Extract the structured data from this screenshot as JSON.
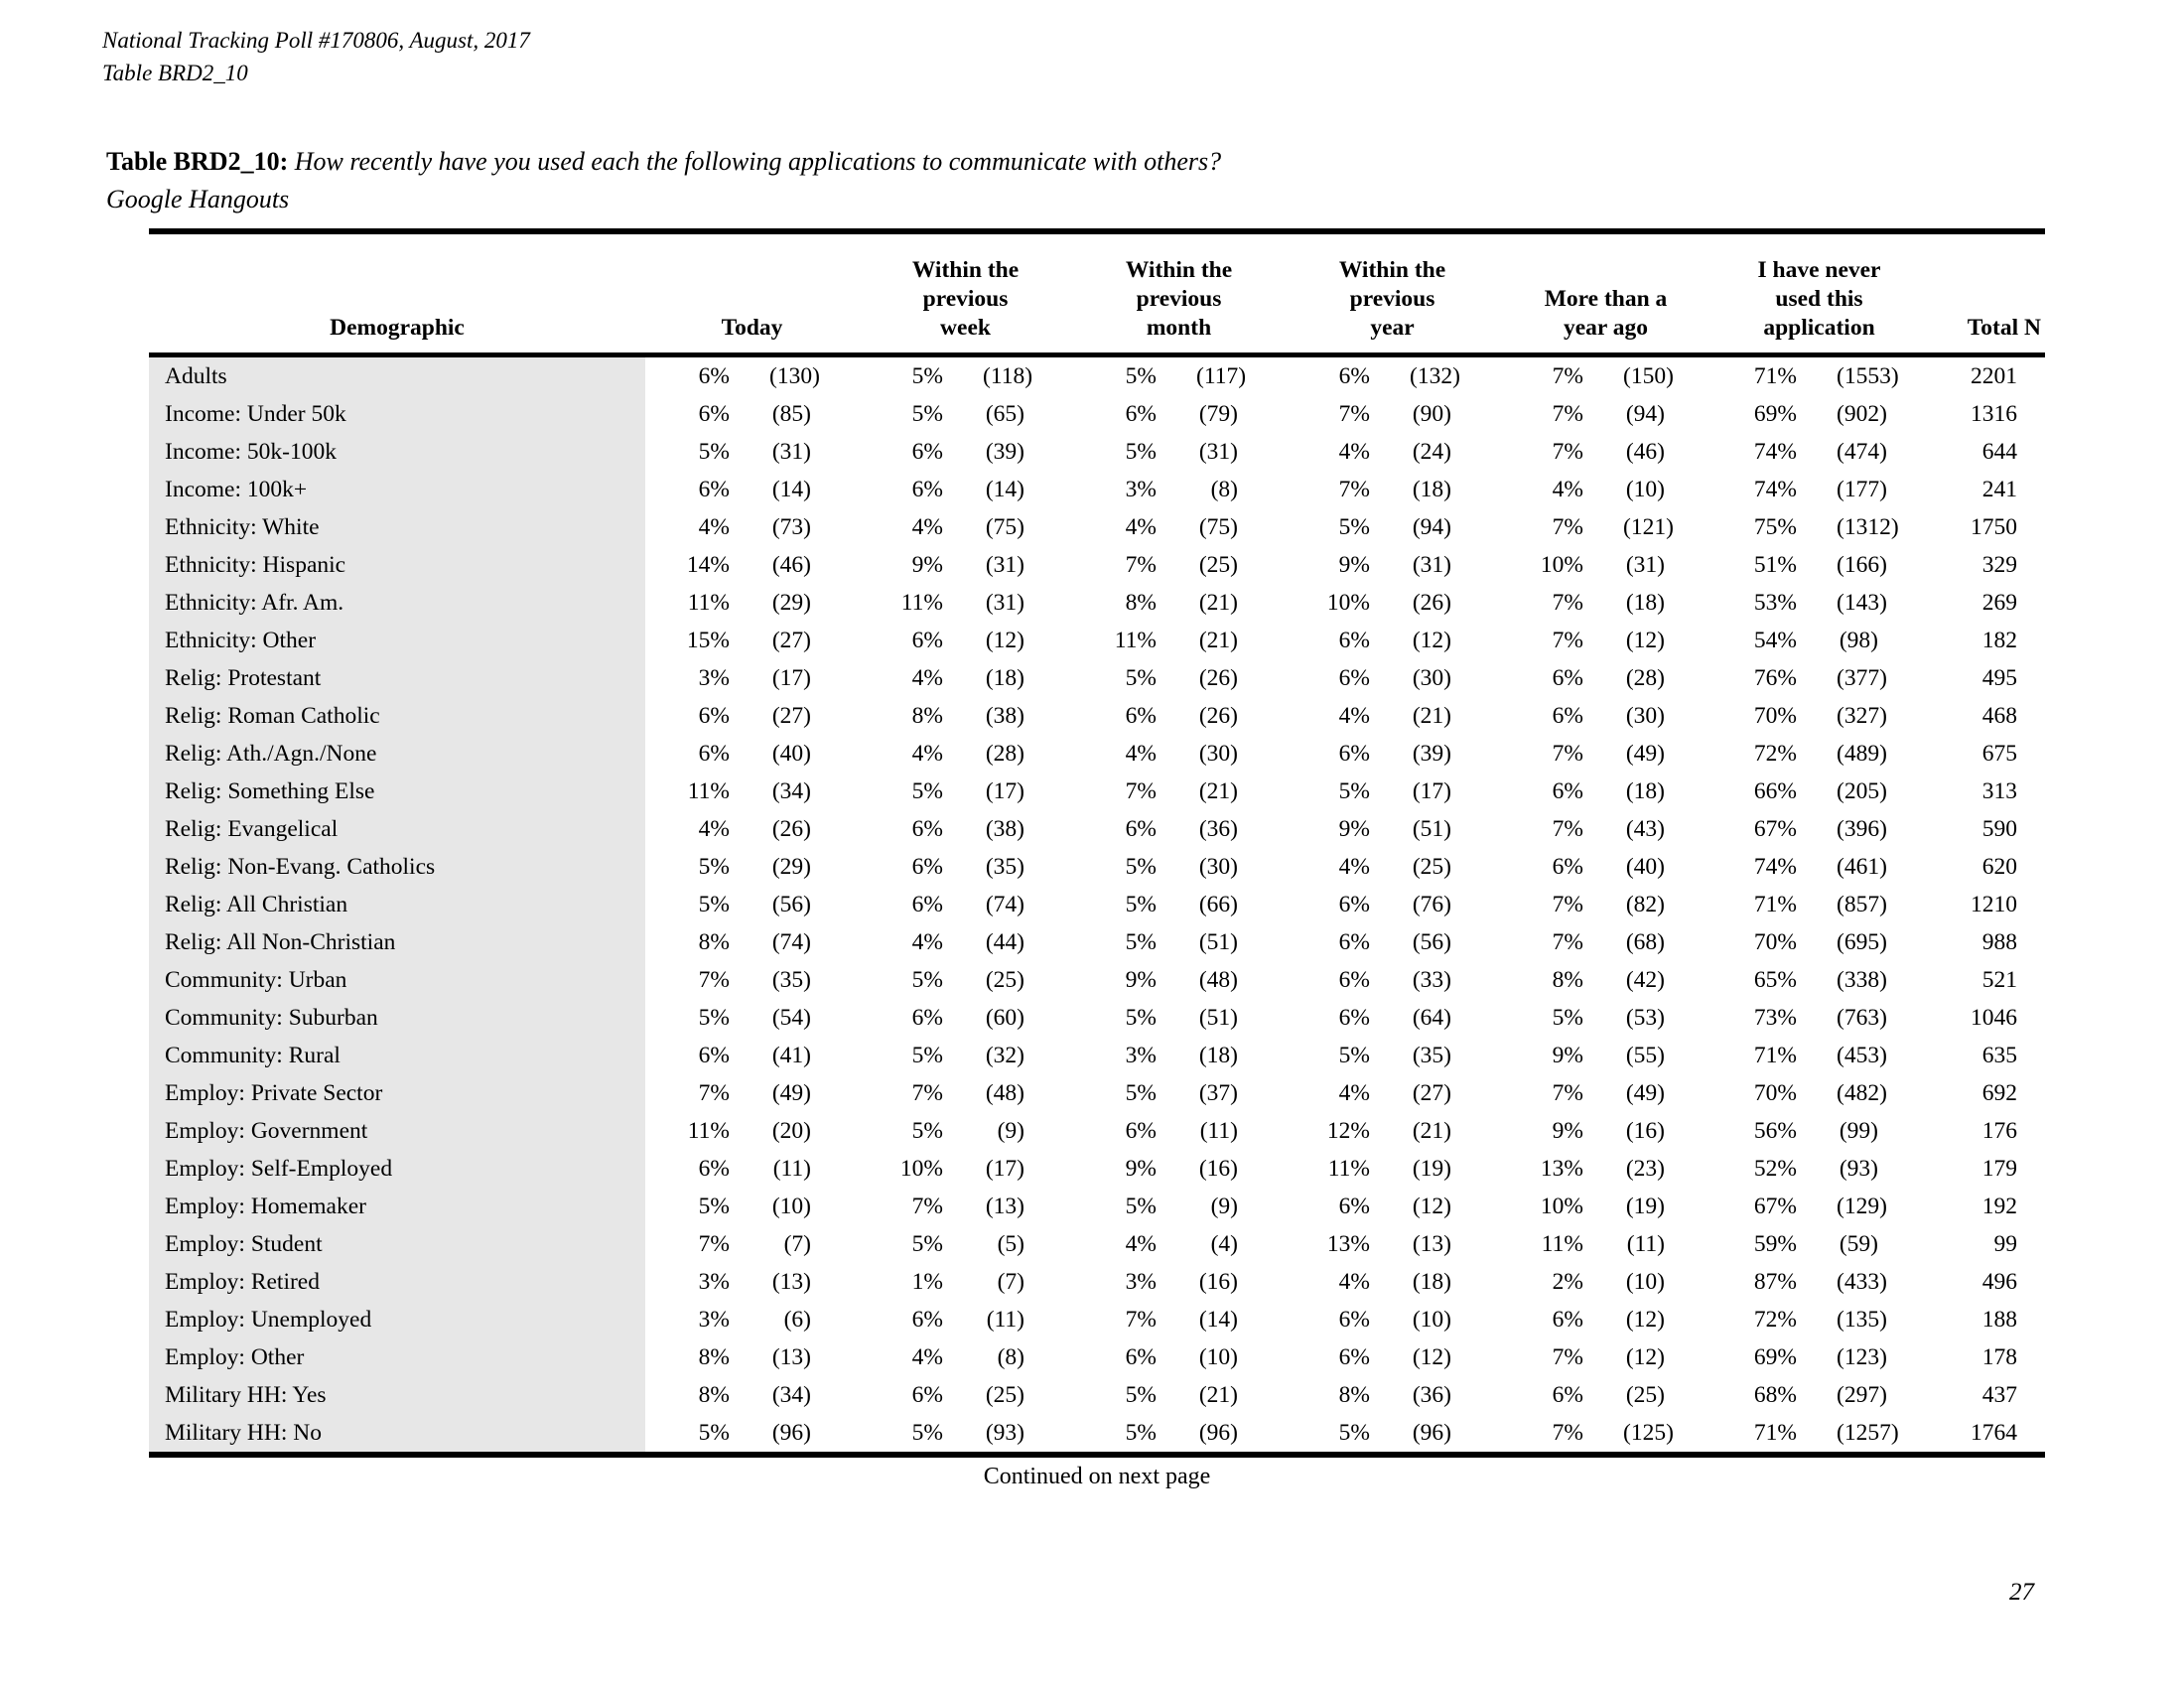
{
  "page": {
    "header_line1": "National Tracking Poll #170806, August, 2017",
    "header_line2": "Table BRD2_10",
    "title_label": "Table BRD2_10:",
    "title_question": "How recently have you used each the following applications to communicate with others?",
    "title_subject": "Google Hangouts",
    "footer_note": "Continued on next page",
    "page_number": "27"
  },
  "colors": {
    "row_shade": "#e7e7e7",
    "text": "#000000",
    "rule": "#000000"
  },
  "table": {
    "demographic_header": "Demographic",
    "group_headers": [
      "Today",
      "Within the previous week",
      "Within the previous month",
      "Within the previous year",
      "More than a year ago",
      "I have never used this application"
    ],
    "total_header": "Total N",
    "rows": [
      {
        "label": "Adults",
        "values": [
          [
            "6%",
            "(130)"
          ],
          [
            "5%",
            "(118)"
          ],
          [
            "5%",
            "(117)"
          ],
          [
            "6%",
            "(132)"
          ],
          [
            "7%",
            "(150)"
          ],
          [
            "71%",
            "(1553)"
          ]
        ],
        "total": "2201"
      },
      {
        "label": "Income: Under 50k",
        "values": [
          [
            "6%",
            "(85)"
          ],
          [
            "5%",
            "(65)"
          ],
          [
            "6%",
            "(79)"
          ],
          [
            "7%",
            "(90)"
          ],
          [
            "7%",
            "(94)"
          ],
          [
            "69%",
            "(902)"
          ]
        ],
        "total": "1316"
      },
      {
        "label": "Income: 50k-100k",
        "values": [
          [
            "5%",
            "(31)"
          ],
          [
            "6%",
            "(39)"
          ],
          [
            "5%",
            "(31)"
          ],
          [
            "4%",
            "(24)"
          ],
          [
            "7%",
            "(46)"
          ],
          [
            "74%",
            "(474)"
          ]
        ],
        "total": "644"
      },
      {
        "label": "Income: 100k+",
        "values": [
          [
            "6%",
            "(14)"
          ],
          [
            "6%",
            "(14)"
          ],
          [
            "3%",
            "(8)"
          ],
          [
            "7%",
            "(18)"
          ],
          [
            "4%",
            "(10)"
          ],
          [
            "74%",
            "(177)"
          ]
        ],
        "total": "241"
      },
      {
        "label": "Ethnicity: White",
        "values": [
          [
            "4%",
            "(73)"
          ],
          [
            "4%",
            "(75)"
          ],
          [
            "4%",
            "(75)"
          ],
          [
            "5%",
            "(94)"
          ],
          [
            "7%",
            "(121)"
          ],
          [
            "75%",
            "(1312)"
          ]
        ],
        "total": "1750"
      },
      {
        "label": "Ethnicity: Hispanic",
        "values": [
          [
            "14%",
            "(46)"
          ],
          [
            "9%",
            "(31)"
          ],
          [
            "7%",
            "(25)"
          ],
          [
            "9%",
            "(31)"
          ],
          [
            "10%",
            "(31)"
          ],
          [
            "51%",
            "(166)"
          ]
        ],
        "total": "329"
      },
      {
        "label": "Ethnicity: Afr. Am.",
        "values": [
          [
            "11%",
            "(29)"
          ],
          [
            "11%",
            "(31)"
          ],
          [
            "8%",
            "(21)"
          ],
          [
            "10%",
            "(26)"
          ],
          [
            "7%",
            "(18)"
          ],
          [
            "53%",
            "(143)"
          ]
        ],
        "total": "269"
      },
      {
        "label": "Ethnicity: Other",
        "values": [
          [
            "15%",
            "(27)"
          ],
          [
            "6%",
            "(12)"
          ],
          [
            "11%",
            "(21)"
          ],
          [
            "6%",
            "(12)"
          ],
          [
            "7%",
            "(12)"
          ],
          [
            "54%",
            "(98)"
          ]
        ],
        "total": "182"
      },
      {
        "label": "Relig: Protestant",
        "values": [
          [
            "3%",
            "(17)"
          ],
          [
            "4%",
            "(18)"
          ],
          [
            "5%",
            "(26)"
          ],
          [
            "6%",
            "(30)"
          ],
          [
            "6%",
            "(28)"
          ],
          [
            "76%",
            "(377)"
          ]
        ],
        "total": "495"
      },
      {
        "label": "Relig: Roman Catholic",
        "values": [
          [
            "6%",
            "(27)"
          ],
          [
            "8%",
            "(38)"
          ],
          [
            "6%",
            "(26)"
          ],
          [
            "4%",
            "(21)"
          ],
          [
            "6%",
            "(30)"
          ],
          [
            "70%",
            "(327)"
          ]
        ],
        "total": "468"
      },
      {
        "label": "Relig: Ath./Agn./None",
        "values": [
          [
            "6%",
            "(40)"
          ],
          [
            "4%",
            "(28)"
          ],
          [
            "4%",
            "(30)"
          ],
          [
            "6%",
            "(39)"
          ],
          [
            "7%",
            "(49)"
          ],
          [
            "72%",
            "(489)"
          ]
        ],
        "total": "675"
      },
      {
        "label": "Relig: Something Else",
        "values": [
          [
            "11%",
            "(34)"
          ],
          [
            "5%",
            "(17)"
          ],
          [
            "7%",
            "(21)"
          ],
          [
            "5%",
            "(17)"
          ],
          [
            "6%",
            "(18)"
          ],
          [
            "66%",
            "(205)"
          ]
        ],
        "total": "313"
      },
      {
        "label": "Relig: Evangelical",
        "values": [
          [
            "4%",
            "(26)"
          ],
          [
            "6%",
            "(38)"
          ],
          [
            "6%",
            "(36)"
          ],
          [
            "9%",
            "(51)"
          ],
          [
            "7%",
            "(43)"
          ],
          [
            "67%",
            "(396)"
          ]
        ],
        "total": "590"
      },
      {
        "label": "Relig: Non-Evang. Catholics",
        "values": [
          [
            "5%",
            "(29)"
          ],
          [
            "6%",
            "(35)"
          ],
          [
            "5%",
            "(30)"
          ],
          [
            "4%",
            "(25)"
          ],
          [
            "6%",
            "(40)"
          ],
          [
            "74%",
            "(461)"
          ]
        ],
        "total": "620"
      },
      {
        "label": "Relig: All Christian",
        "values": [
          [
            "5%",
            "(56)"
          ],
          [
            "6%",
            "(74)"
          ],
          [
            "5%",
            "(66)"
          ],
          [
            "6%",
            "(76)"
          ],
          [
            "7%",
            "(82)"
          ],
          [
            "71%",
            "(857)"
          ]
        ],
        "total": "1210"
      },
      {
        "label": "Relig: All Non-Christian",
        "values": [
          [
            "8%",
            "(74)"
          ],
          [
            "4%",
            "(44)"
          ],
          [
            "5%",
            "(51)"
          ],
          [
            "6%",
            "(56)"
          ],
          [
            "7%",
            "(68)"
          ],
          [
            "70%",
            "(695)"
          ]
        ],
        "total": "988"
      },
      {
        "label": "Community: Urban",
        "values": [
          [
            "7%",
            "(35)"
          ],
          [
            "5%",
            "(25)"
          ],
          [
            "9%",
            "(48)"
          ],
          [
            "6%",
            "(33)"
          ],
          [
            "8%",
            "(42)"
          ],
          [
            "65%",
            "(338)"
          ]
        ],
        "total": "521"
      },
      {
        "label": "Community: Suburban",
        "values": [
          [
            "5%",
            "(54)"
          ],
          [
            "6%",
            "(60)"
          ],
          [
            "5%",
            "(51)"
          ],
          [
            "6%",
            "(64)"
          ],
          [
            "5%",
            "(53)"
          ],
          [
            "73%",
            "(763)"
          ]
        ],
        "total": "1046"
      },
      {
        "label": "Community: Rural",
        "values": [
          [
            "6%",
            "(41)"
          ],
          [
            "5%",
            "(32)"
          ],
          [
            "3%",
            "(18)"
          ],
          [
            "5%",
            "(35)"
          ],
          [
            "9%",
            "(55)"
          ],
          [
            "71%",
            "(453)"
          ]
        ],
        "total": "635"
      },
      {
        "label": "Employ: Private Sector",
        "values": [
          [
            "7%",
            "(49)"
          ],
          [
            "7%",
            "(48)"
          ],
          [
            "5%",
            "(37)"
          ],
          [
            "4%",
            "(27)"
          ],
          [
            "7%",
            "(49)"
          ],
          [
            "70%",
            "(482)"
          ]
        ],
        "total": "692"
      },
      {
        "label": "Employ: Government",
        "values": [
          [
            "11%",
            "(20)"
          ],
          [
            "5%",
            "(9)"
          ],
          [
            "6%",
            "(11)"
          ],
          [
            "12%",
            "(21)"
          ],
          [
            "9%",
            "(16)"
          ],
          [
            "56%",
            "(99)"
          ]
        ],
        "total": "176"
      },
      {
        "label": "Employ: Self-Employed",
        "values": [
          [
            "6%",
            "(11)"
          ],
          [
            "10%",
            "(17)"
          ],
          [
            "9%",
            "(16)"
          ],
          [
            "11%",
            "(19)"
          ],
          [
            "13%",
            "(23)"
          ],
          [
            "52%",
            "(93)"
          ]
        ],
        "total": "179"
      },
      {
        "label": "Employ: Homemaker",
        "values": [
          [
            "5%",
            "(10)"
          ],
          [
            "7%",
            "(13)"
          ],
          [
            "5%",
            "(9)"
          ],
          [
            "6%",
            "(12)"
          ],
          [
            "10%",
            "(19)"
          ],
          [
            "67%",
            "(129)"
          ]
        ],
        "total": "192"
      },
      {
        "label": "Employ: Student",
        "values": [
          [
            "7%",
            "(7)"
          ],
          [
            "5%",
            "(5)"
          ],
          [
            "4%",
            "(4)"
          ],
          [
            "13%",
            "(13)"
          ],
          [
            "11%",
            "(11)"
          ],
          [
            "59%",
            "(59)"
          ]
        ],
        "total": "99"
      },
      {
        "label": "Employ: Retired",
        "values": [
          [
            "3%",
            "(13)"
          ],
          [
            "1%",
            "(7)"
          ],
          [
            "3%",
            "(16)"
          ],
          [
            "4%",
            "(18)"
          ],
          [
            "2%",
            "(10)"
          ],
          [
            "87%",
            "(433)"
          ]
        ],
        "total": "496"
      },
      {
        "label": "Employ: Unemployed",
        "values": [
          [
            "3%",
            "(6)"
          ],
          [
            "6%",
            "(11)"
          ],
          [
            "7%",
            "(14)"
          ],
          [
            "6%",
            "(10)"
          ],
          [
            "6%",
            "(12)"
          ],
          [
            "72%",
            "(135)"
          ]
        ],
        "total": "188"
      },
      {
        "label": "Employ: Other",
        "values": [
          [
            "8%",
            "(13)"
          ],
          [
            "4%",
            "(8)"
          ],
          [
            "6%",
            "(10)"
          ],
          [
            "6%",
            "(12)"
          ],
          [
            "7%",
            "(12)"
          ],
          [
            "69%",
            "(123)"
          ]
        ],
        "total": "178"
      },
      {
        "label": "Military HH: Yes",
        "values": [
          [
            "8%",
            "(34)"
          ],
          [
            "6%",
            "(25)"
          ],
          [
            "5%",
            "(21)"
          ],
          [
            "8%",
            "(36)"
          ],
          [
            "6%",
            "(25)"
          ],
          [
            "68%",
            "(297)"
          ]
        ],
        "total": "437"
      },
      {
        "label": "Military HH: No",
        "values": [
          [
            "5%",
            "(96)"
          ],
          [
            "5%",
            "(93)"
          ],
          [
            "5%",
            "(96)"
          ],
          [
            "5%",
            "(96)"
          ],
          [
            "7%",
            "(125)"
          ],
          [
            "71%",
            "(1257)"
          ]
        ],
        "total": "1764"
      }
    ]
  }
}
